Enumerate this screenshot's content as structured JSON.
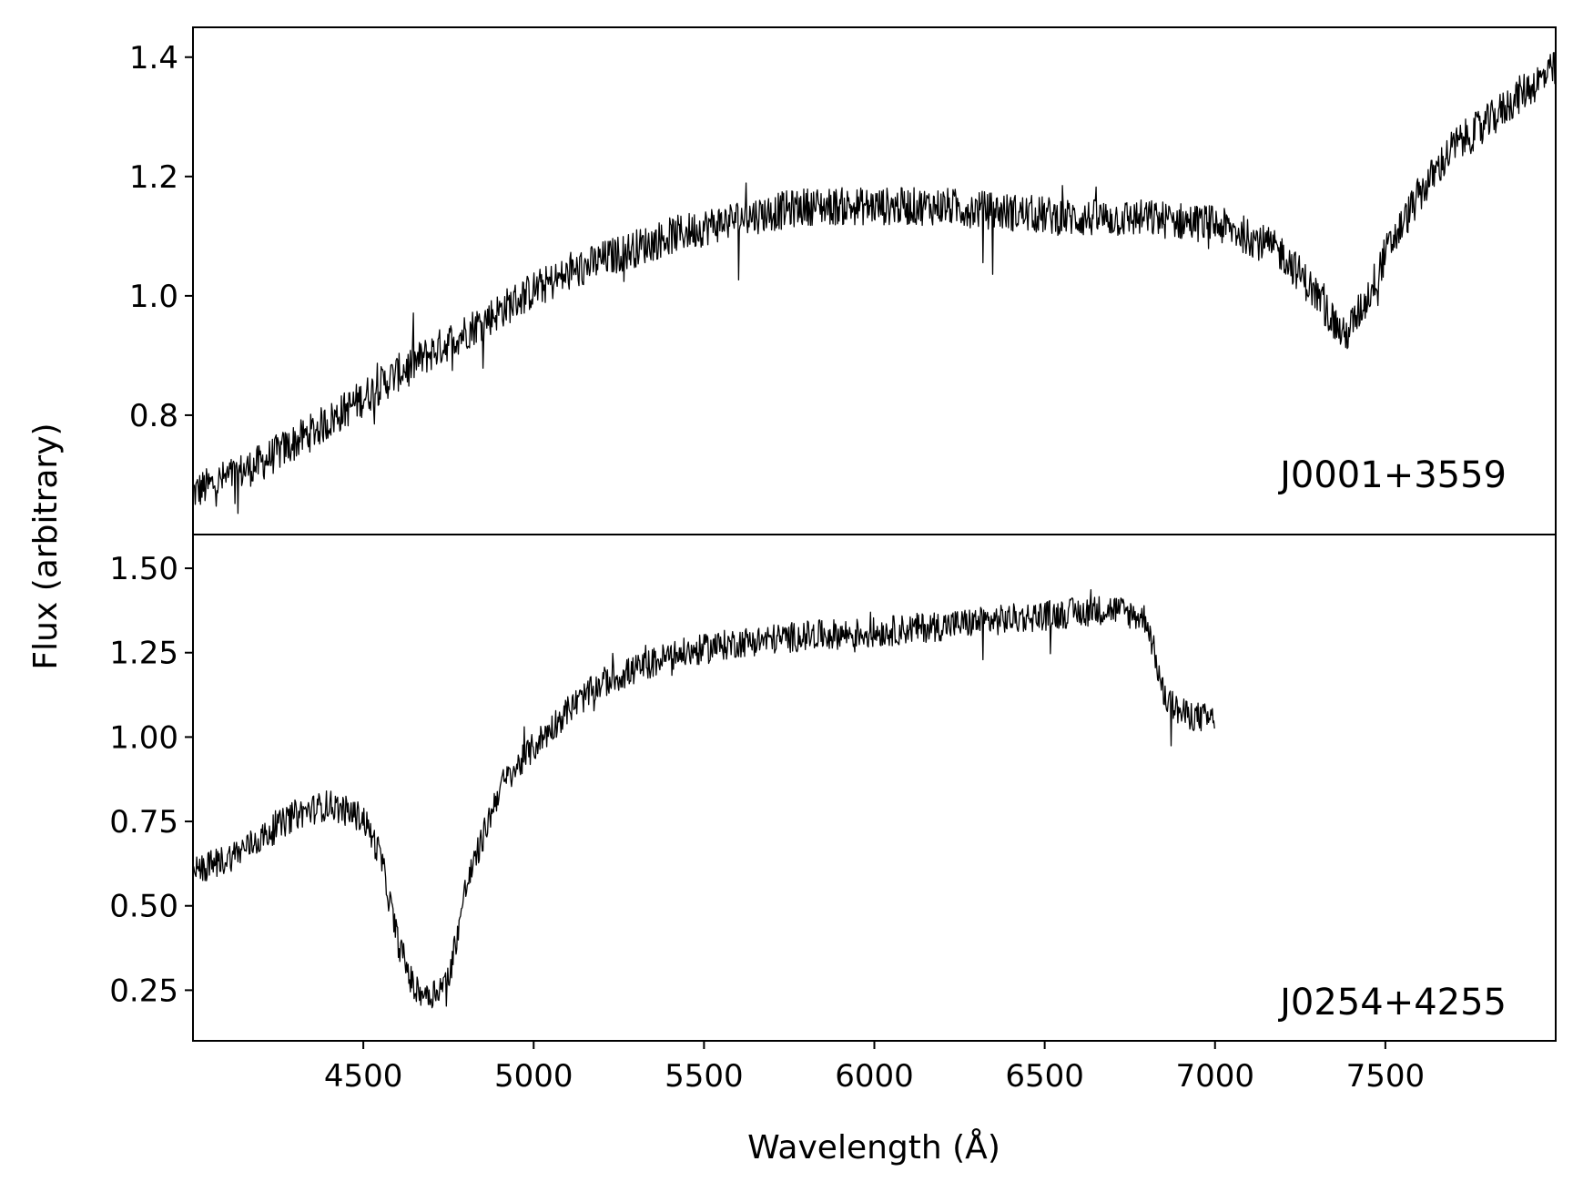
{
  "figure": {
    "ylabel": "Flux (arbitrary)",
    "xlabel": "Wavelength (Å)"
  },
  "chart_data": [
    {
      "type": "line",
      "panel_label": "J0001+3559",
      "xlim": [
        4000,
        8000
      ],
      "ylim": [
        0.6,
        1.45
      ],
      "yticks": [
        0.8,
        1.0,
        1.2,
        1.4
      ],
      "ytick_labels": [
        "0.8",
        "1.0",
        "1.2",
        "1.4"
      ],
      "x_tick_labels_shown": false,
      "series": [
        {
          "x": [
            4000,
            4200,
            4400,
            4600,
            4800,
            5000,
            5200,
            5400,
            5600,
            5800,
            6000,
            6200,
            6400,
            6600,
            6800,
            7000,
            7100,
            7200,
            7300,
            7380,
            7450,
            7500,
            7600,
            7700,
            7800,
            7900,
            8000
          ],
          "y": [
            0.67,
            0.72,
            0.79,
            0.87,
            0.94,
            1.01,
            1.06,
            1.1,
            1.13,
            1.15,
            1.15,
            1.15,
            1.14,
            1.13,
            1.13,
            1.12,
            1.1,
            1.07,
            1.0,
            0.93,
            1.0,
            1.07,
            1.17,
            1.25,
            1.29,
            1.34,
            1.38
          ]
        }
      ]
    },
    {
      "type": "line",
      "panel_label": "J0254+4255",
      "xlim": [
        4000,
        8000
      ],
      "ylim": [
        0.1,
        1.6
      ],
      "yticks": [
        0.25,
        0.5,
        0.75,
        1.0,
        1.25,
        1.5
      ],
      "ytick_labels": [
        "0.25",
        "0.50",
        "0.75",
        "1.00",
        "1.25",
        "1.50"
      ],
      "xticks": [
        4500,
        5000,
        5500,
        6000,
        6500,
        7000,
        7500
      ],
      "xtick_labels": [
        "4500",
        "5000",
        "5500",
        "6000",
        "6500",
        "7000",
        "7500"
      ],
      "series": [
        {
          "x": [
            4000,
            4100,
            4200,
            4300,
            4400,
            4500,
            4550,
            4600,
            4650,
            4700,
            4750,
            4800,
            4900,
            5000,
            5100,
            5200,
            5300,
            5400,
            5600,
            5800,
            6000,
            6200,
            6400,
            6600,
            6700,
            6800,
            6850,
            6900,
            7000
          ],
          "y": [
            0.6,
            0.64,
            0.7,
            0.77,
            0.8,
            0.76,
            0.65,
            0.4,
            0.25,
            0.24,
            0.28,
            0.55,
            0.85,
            0.97,
            1.08,
            1.16,
            1.2,
            1.24,
            1.28,
            1.3,
            1.31,
            1.33,
            1.35,
            1.37,
            1.38,
            1.35,
            1.12,
            1.07,
            1.05
          ]
        }
      ]
    }
  ]
}
